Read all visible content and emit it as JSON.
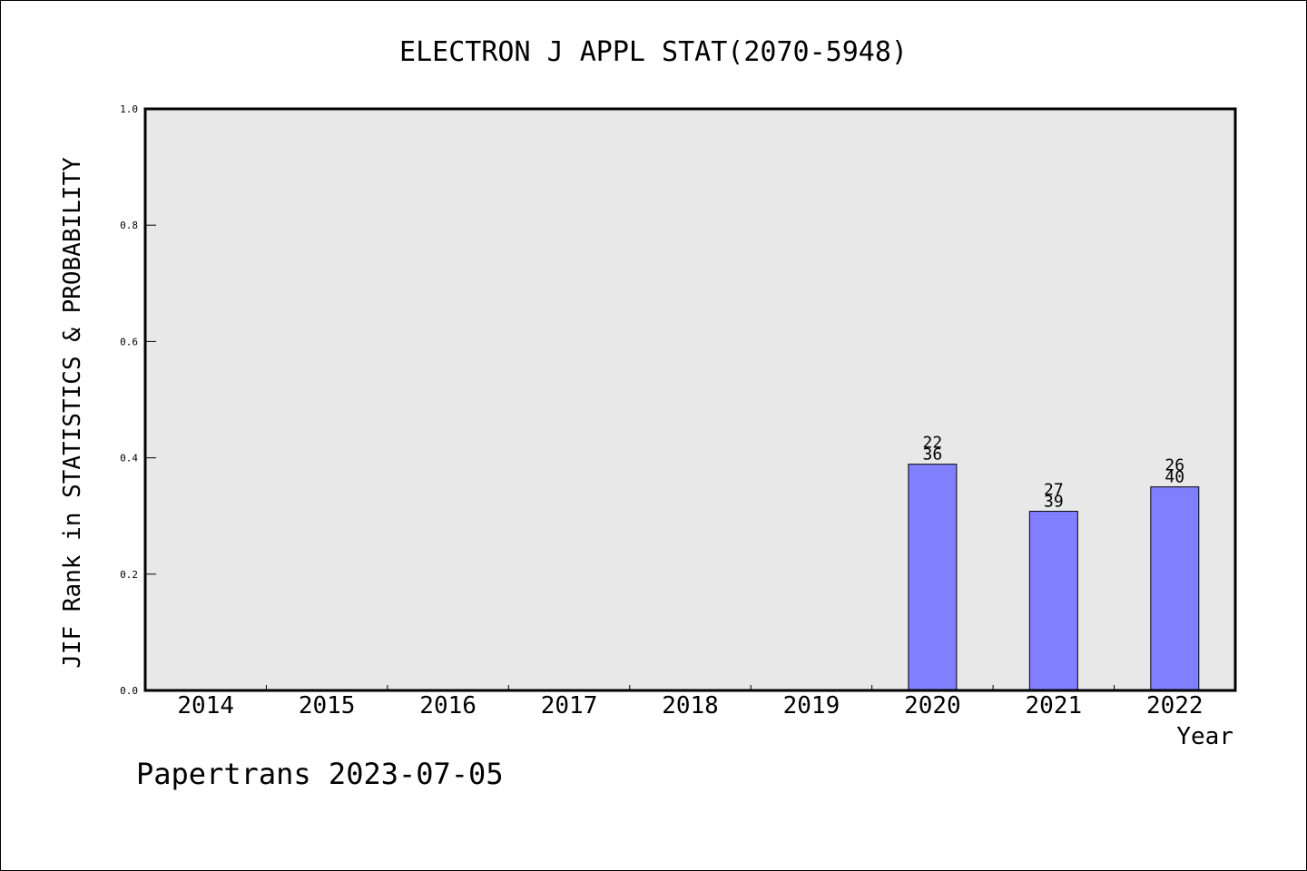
{
  "chart_data": {
    "type": "bar",
    "title": "ELECTRON J APPL STAT(2070-5948)",
    "xlabel": "Year",
    "ylabel": "JIF Rank in STATISTICS & PROBABILITY",
    "categories": [
      "2014",
      "2015",
      "2016",
      "2017",
      "2018",
      "2019",
      "2020",
      "2021",
      "2022"
    ],
    "series": [
      {
        "values": [
          null,
          null,
          null,
          null,
          null,
          null,
          0.389,
          0.308,
          0.35
        ],
        "rank": [
          null,
          null,
          null,
          null,
          null,
          null,
          "22",
          "27",
          "26"
        ],
        "total": [
          null,
          null,
          null,
          null,
          null,
          null,
          "36",
          "39",
          "40"
        ]
      }
    ],
    "ylim": [
      0,
      1.0
    ],
    "yticks": [
      "0.0",
      "0.2",
      "0.4",
      "0.6",
      "0.8",
      "1.0"
    ],
    "grid": false,
    "bar_color": "#8080ff",
    "plot_background": "#e8e8e8"
  },
  "footer": "Papertrans 2023-07-05"
}
